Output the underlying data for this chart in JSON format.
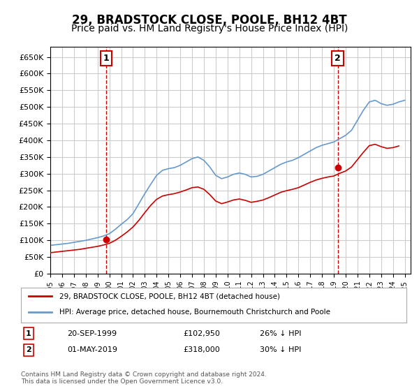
{
  "title": "29, BRADSTOCK CLOSE, POOLE, BH12 4BT",
  "subtitle": "Price paid vs. HM Land Registry's House Price Index (HPI)",
  "title_fontsize": 12,
  "subtitle_fontsize": 10,
  "ylabel_ticks": [
    "£0",
    "£50K",
    "£100K",
    "£150K",
    "£200K",
    "£250K",
    "£300K",
    "£350K",
    "£400K",
    "£450K",
    "£500K",
    "£550K",
    "£600K",
    "£650K"
  ],
  "ytick_values": [
    0,
    50000,
    100000,
    150000,
    200000,
    250000,
    300000,
    350000,
    400000,
    450000,
    500000,
    550000,
    600000,
    650000
  ],
  "ylim": [
    0,
    680000
  ],
  "xlim_start": 1995.0,
  "xlim_end": 2025.5,
  "background_color": "#ffffff",
  "plot_bg_color": "#ffffff",
  "grid_color": "#cccccc",
  "line1_color": "#cc0000",
  "line2_color": "#6699cc",
  "marker1_year": 1999.72,
  "marker1_value": 102950,
  "marker2_year": 2019.33,
  "marker2_value": 318000,
  "purchase1_label": "1",
  "purchase2_label": "2",
  "legend_line1": "29, BRADSTOCK CLOSE, POOLE, BH12 4BT (detached house)",
  "legend_line2": "HPI: Average price, detached house, Bournemouth Christchurch and Poole",
  "table_row1": [
    "1",
    "20-SEP-1999",
    "£102,950",
    "26% ↓ HPI"
  ],
  "table_row2": [
    "2",
    "01-MAY-2019",
    "£318,000",
    "30% ↓ HPI"
  ],
  "footnote": "Contains HM Land Registry data © Crown copyright and database right 2024.\nThis data is licensed under the Open Government Licence v3.0.",
  "hpi_years": [
    1995,
    1995.5,
    1996,
    1996.5,
    1997,
    1997.5,
    1998,
    1998.5,
    1999,
    1999.5,
    2000,
    2000.5,
    2001,
    2001.5,
    2002,
    2002.5,
    2003,
    2003.5,
    2004,
    2004.5,
    2005,
    2005.5,
    2006,
    2006.5,
    2007,
    2007.5,
    2008,
    2008.5,
    2009,
    2009.5,
    2010,
    2010.5,
    2011,
    2011.5,
    2012,
    2012.5,
    2013,
    2013.5,
    2014,
    2014.5,
    2015,
    2015.5,
    2016,
    2016.5,
    2017,
    2017.5,
    2018,
    2018.5,
    2019,
    2019.5,
    2020,
    2020.5,
    2021,
    2021.5,
    2022,
    2022.5,
    2023,
    2023.5,
    2024,
    2024.5,
    2025
  ],
  "hpi_values": [
    85000,
    87000,
    89000,
    91000,
    94000,
    97000,
    100000,
    104000,
    108000,
    113000,
    120000,
    133000,
    148000,
    162000,
    180000,
    210000,
    240000,
    268000,
    295000,
    310000,
    315000,
    318000,
    325000,
    335000,
    345000,
    350000,
    340000,
    320000,
    295000,
    285000,
    290000,
    298000,
    302000,
    298000,
    290000,
    292000,
    298000,
    308000,
    318000,
    328000,
    335000,
    340000,
    348000,
    358000,
    368000,
    378000,
    385000,
    390000,
    395000,
    405000,
    415000,
    430000,
    460000,
    490000,
    515000,
    520000,
    510000,
    505000,
    508000,
    515000,
    520000
  ],
  "prop_years": [
    1995,
    1995.5,
    1996,
    1996.5,
    1997,
    1997.5,
    1998,
    1998.5,
    1999,
    1999.5,
    2000,
    2000.5,
    2001,
    2001.5,
    2002,
    2002.5,
    2003,
    2003.5,
    2004,
    2004.5,
    2005,
    2005.5,
    2006,
    2006.5,
    2007,
    2007.5,
    2008,
    2008.5,
    2009,
    2009.5,
    2010,
    2010.5,
    2011,
    2011.5,
    2012,
    2012.5,
    2013,
    2013.5,
    2014,
    2014.5,
    2015,
    2015.5,
    2016,
    2016.5,
    2017,
    2017.5,
    2018,
    2018.5,
    2019,
    2019.5,
    2020,
    2020.5,
    2021,
    2021.5,
    2022,
    2022.5,
    2023,
    2023.5,
    2024,
    2024.5
  ],
  "prop_values": [
    63000,
    65000,
    67000,
    69000,
    71000,
    73000,
    76000,
    79000,
    82000,
    86000,
    91000,
    100000,
    112000,
    125000,
    140000,
    160000,
    183000,
    205000,
    223000,
    233000,
    237000,
    240000,
    245000,
    251000,
    258000,
    260000,
    253000,
    237000,
    218000,
    210000,
    215000,
    221000,
    224000,
    220000,
    214000,
    217000,
    221000,
    228000,
    236000,
    244000,
    249000,
    253000,
    258000,
    266000,
    274000,
    281000,
    286000,
    290000,
    293000,
    301000,
    308000,
    320000,
    342000,
    364000,
    384000,
    388000,
    381000,
    376000,
    378000,
    383000
  ]
}
